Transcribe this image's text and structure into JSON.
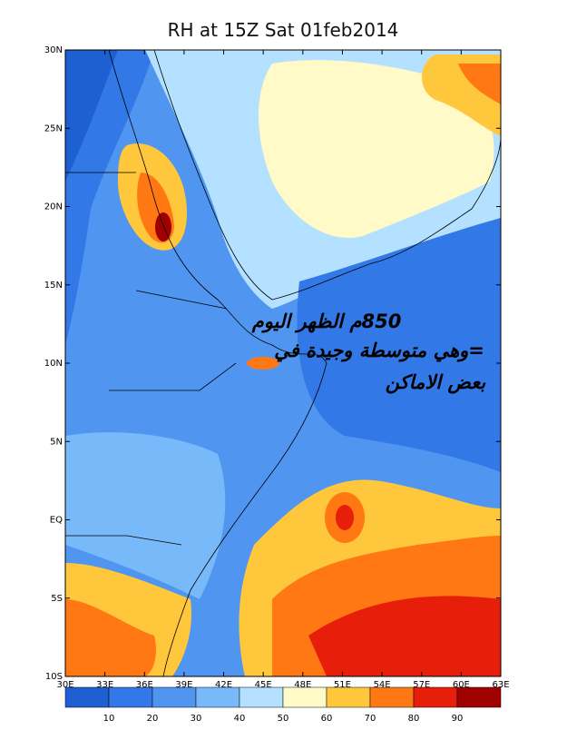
{
  "title": "RH at 15Z Sat 01feb2014",
  "map": {
    "lat_labels": [
      "30N",
      "25N",
      "20N",
      "15N",
      "10N",
      "5N",
      "EQ",
      "5S",
      "10S"
    ],
    "lon_labels": [
      "30E",
      "33E",
      "36E",
      "39E",
      "42E",
      "45E",
      "48E",
      "51E",
      "54E",
      "57E",
      "60E",
      "63E"
    ]
  },
  "colorbar": {
    "labels": [
      10,
      20,
      30,
      40,
      50,
      60,
      70,
      80,
      90
    ],
    "colors": [
      "#1e5fd2",
      "#3278e6",
      "#5096f0",
      "#78b9fa",
      "#b4e1ff",
      "#fffac8",
      "#ffc83c",
      "#ff7814",
      "#e61e0a",
      "#a00000"
    ]
  },
  "annotation": {
    "lines": [
      "850م الظهر اليوم",
      "=وهي متوسطة وجيدة في",
      "بعض الاماكن"
    ]
  }
}
